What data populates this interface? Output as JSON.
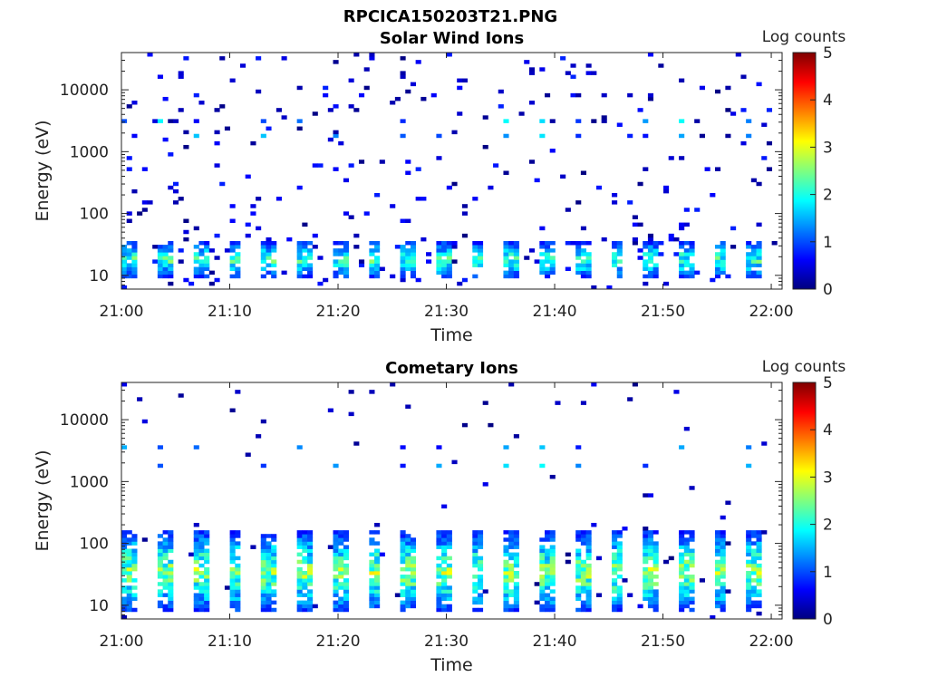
{
  "figure_title": "RPCICA150203T21.PNG",
  "colors": {
    "colormap": [
      "#00007f",
      "#0000ff",
      "#007fff",
      "#00ffff",
      "#7fff7f",
      "#ffff00",
      "#ff7f00",
      "#ff0000",
      "#7f0000"
    ]
  },
  "chart_data": [
    {
      "type": "heatmap",
      "title": "Solar Wind Ions",
      "xlabel": "Time",
      "ylabel": "Energy (eV)",
      "x_range": [
        "21:00",
        "22:01"
      ],
      "x_ticks": [
        "21:00",
        "21:10",
        "21:20",
        "21:30",
        "21:40",
        "21:50",
        "22:00"
      ],
      "y_scale": "log",
      "y_range": [
        6,
        40000
      ],
      "y_ticks": [
        10,
        100,
        1000,
        10000
      ],
      "y_tick_labels": [
        "10",
        "100",
        "1000",
        "10000"
      ],
      "colorbar": {
        "label": "Log counts",
        "range": [
          0,
          5
        ],
        "ticks": [
          "0",
          "1",
          "2",
          "3",
          "4",
          "5"
        ]
      },
      "features": {
        "low_energy_band_eV": [
          8,
          35
        ],
        "low_energy_peak_log_counts": 2.8,
        "sweep_period_minutes": 3.2,
        "lines_eV": [
          3000,
          1600
        ],
        "sparse_background_log_counts": 0.4
      }
    },
    {
      "type": "heatmap",
      "title": "Cometary Ions",
      "xlabel": "Time",
      "ylabel": "Energy (eV)",
      "x_range": [
        "21:00",
        "22:01"
      ],
      "x_ticks": [
        "21:00",
        "21:10",
        "21:20",
        "21:30",
        "21:40",
        "21:50",
        "22:00"
      ],
      "y_scale": "log",
      "y_range": [
        6,
        40000
      ],
      "y_ticks": [
        10,
        100,
        1000,
        10000
      ],
      "y_tick_labels": [
        "10",
        "100",
        "1000",
        "10000"
      ],
      "colorbar": {
        "label": "Log counts",
        "range": [
          0,
          5
        ],
        "ticks": [
          "0",
          "1",
          "2",
          "3",
          "4",
          "5"
        ]
      },
      "features": {
        "low_energy_band_eV": [
          7,
          150
        ],
        "low_energy_peak_log_counts": 3.3,
        "sweep_period_minutes": 3.2,
        "lines_eV": [
          3200,
          1600
        ],
        "sparse_background_log_counts": 0.3
      }
    }
  ]
}
